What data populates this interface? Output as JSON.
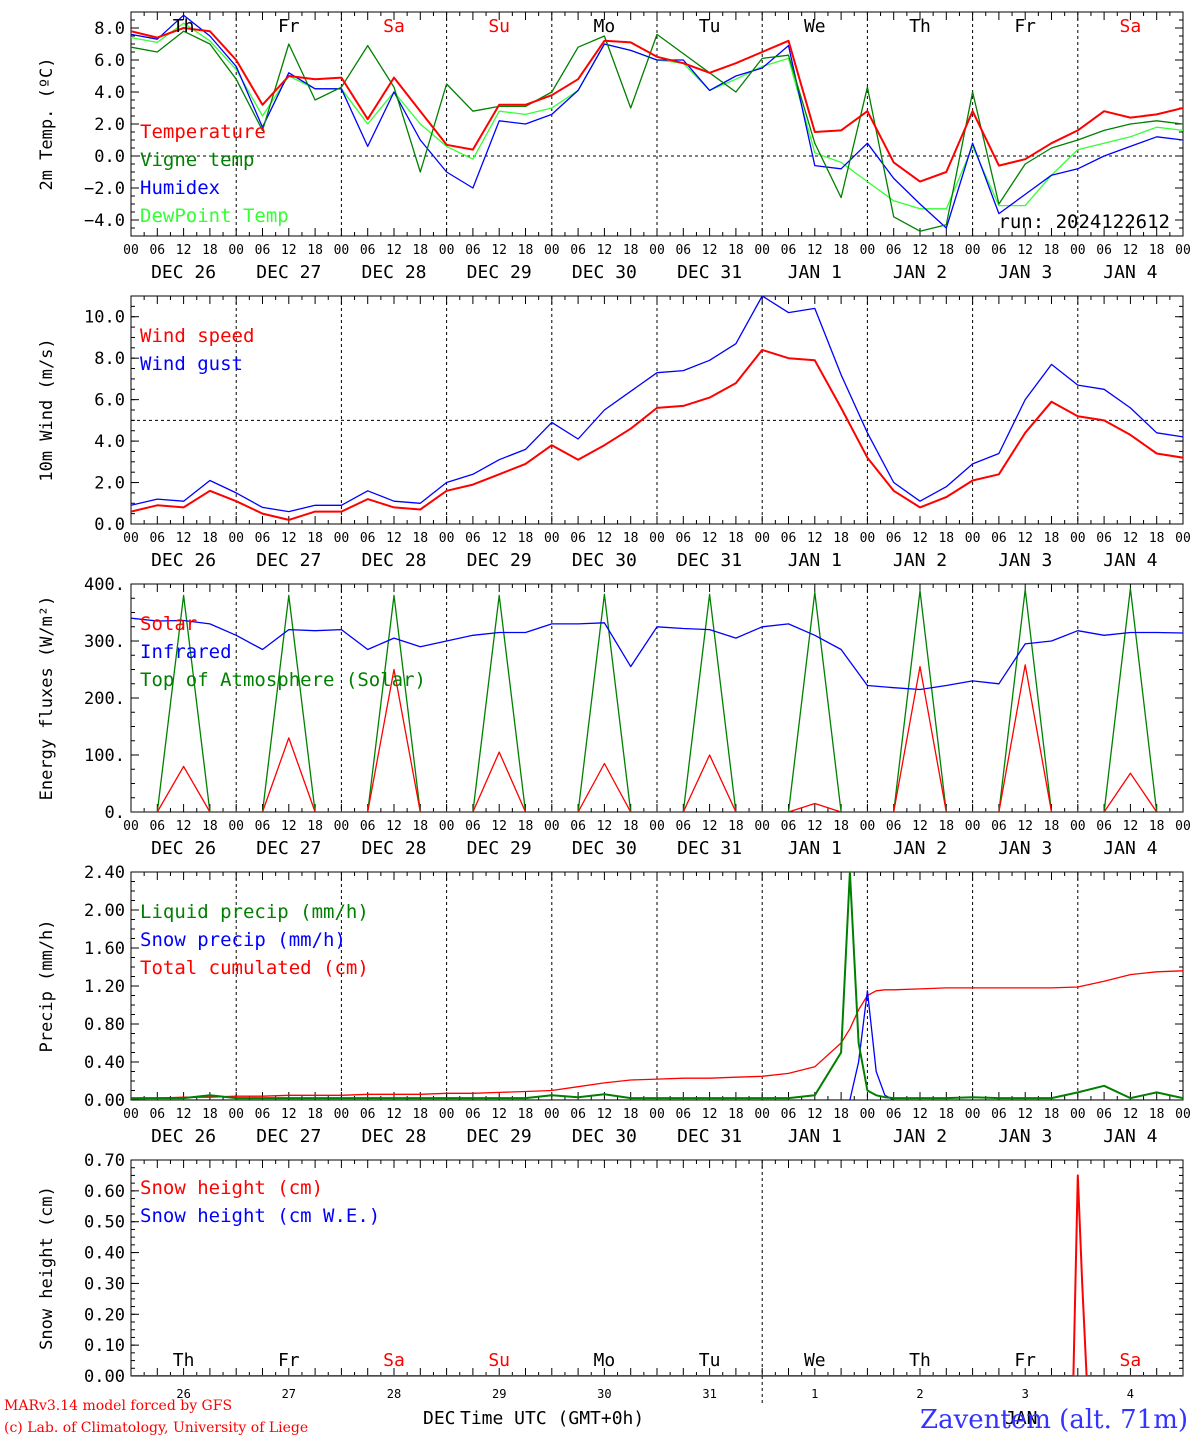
{
  "run_label": "run: 2024122612",
  "footer": {
    "model": "MARv3.14 model forced by GFS",
    "credit": "(c) Lab. of Climatology, University of Liege",
    "xlabel": "Time UTC (GMT+0h)",
    "month_left": "DEC",
    "month_right": "JAN",
    "station": "Zaventem (alt. 71m)"
  },
  "colors": {
    "red": "#ff0000",
    "green": "#008000",
    "blue": "#0000ff",
    "lightgreen": "#33ff33",
    "axis": "#000000"
  },
  "hour_ticks": [
    "00",
    "06",
    "12",
    "18"
  ],
  "day_labels": [
    "DEC 26",
    "DEC 27",
    "DEC 28",
    "DEC 29",
    "DEC 30",
    "DEC 31",
    "JAN  1",
    "JAN  2",
    "JAN  3",
    "JAN  4"
  ],
  "weekdays": [
    {
      "label": "Th",
      "color": "#000000"
    },
    {
      "label": "Fr",
      "color": "#000000"
    },
    {
      "label": "Sa",
      "color": "#ff0000"
    },
    {
      "label": "Su",
      "color": "#ff0000"
    },
    {
      "label": "Mo",
      "color": "#000000"
    },
    {
      "label": "Tu",
      "color": "#000000"
    },
    {
      "label": "We",
      "color": "#000000"
    },
    {
      "label": "Th",
      "color": "#000000"
    },
    {
      "label": "Fr",
      "color": "#000000"
    },
    {
      "label": "Sa",
      "color": "#ff0000"
    }
  ],
  "day_numbers": [
    "26",
    "27",
    "28",
    "29",
    "30",
    "31",
    "1",
    "2",
    "3",
    "4"
  ],
  "chart_data": [
    {
      "type": "line",
      "ylabel": "2m Temp. (ºC)",
      "ylim": [
        -5,
        9
      ],
      "yticks": [
        "8.0",
        "6.0",
        "4.0",
        "2.0",
        "0.0",
        "−2.0",
        "−4.0"
      ],
      "ytick_values": [
        8,
        6,
        4,
        2,
        0,
        -2,
        -4
      ],
      "reference_line": 0,
      "x_hours": [
        0,
        6,
        12,
        18,
        24,
        30,
        36,
        42,
        48,
        54,
        60,
        66,
        72,
        78,
        84,
        90,
        96,
        102,
        108,
        114,
        120,
        126,
        132,
        138,
        144,
        150,
        156,
        162,
        168,
        174,
        180,
        186,
        192,
        198,
        204,
        210,
        216,
        222,
        228,
        234,
        240
      ],
      "series": [
        {
          "name": "Temperature",
          "color": "#ff0000",
          "values": [
            7.8,
            7.4,
            8.0,
            7.8,
            6.0,
            3.2,
            5.0,
            4.8,
            4.9,
            2.3,
            4.9,
            2.8,
            0.7,
            0.4,
            3.2,
            3.2,
            3.8,
            4.8,
            7.2,
            7.1,
            6.2,
            5.8,
            5.2,
            5.8,
            6.5,
            7.2,
            1.5,
            1.6,
            2.8,
            -0.4,
            -1.6,
            -1.0,
            2.8,
            -0.6,
            -0.2,
            0.8,
            1.6,
            2.8,
            2.4,
            2.6,
            3.0
          ]
        },
        {
          "name": "Vigne temp",
          "color": "#008000",
          "values": [
            6.8,
            6.5,
            7.8,
            7.0,
            4.8,
            1.6,
            7.0,
            3.5,
            4.3,
            6.9,
            4.3,
            -1.0,
            4.5,
            2.8,
            3.1,
            3.1,
            4.0,
            6.8,
            7.5,
            3.0,
            7.6,
            6.4,
            5.2,
            4.0,
            6.1,
            6.3,
            0.8,
            -2.6,
            4.3,
            -3.8,
            -4.7,
            -4.3,
            4.0,
            -3.0,
            -0.5,
            0.5,
            1.0,
            1.6,
            2.0,
            2.2,
            2.0
          ]
        },
        {
          "name": "Humidex",
          "color": "#0000ff",
          "values": [
            7.6,
            7.3,
            8.8,
            7.5,
            5.6,
            1.8,
            5.2,
            4.2,
            4.2,
            0.6,
            4.0,
            1.0,
            -1.0,
            -2.0,
            2.2,
            2.0,
            2.6,
            4.1,
            7.0,
            6.6,
            6.0,
            6.0,
            4.1,
            5.0,
            5.5,
            6.9,
            -0.6,
            -0.8,
            0.8,
            -1.4,
            -3.0,
            -4.5,
            0.8,
            -3.6,
            -2.4,
            -1.2,
            -0.8,
            0.0,
            0.6,
            1.2,
            1.0
          ]
        },
        {
          "name": "DewPoint Temp",
          "color": "#33ff33",
          "values": [
            7.4,
            7.1,
            8.3,
            7.2,
            5.4,
            2.5,
            5.0,
            4.2,
            4.2,
            2.0,
            4.0,
            2.0,
            0.6,
            -0.2,
            2.8,
            2.6,
            3.0,
            4.1,
            7.0,
            6.6,
            6.0,
            5.8,
            4.1,
            4.8,
            5.6,
            6.1,
            0.2,
            -0.4,
            -1.6,
            -2.8,
            -3.3,
            -3.3,
            0.6,
            -3.1,
            -3.1,
            -1.2,
            0.4,
            0.8,
            1.2,
            1.8,
            1.6
          ]
        }
      ]
    },
    {
      "type": "line",
      "ylabel": "10m Wind (m/s)",
      "ylim": [
        0,
        11
      ],
      "yticks": [
        "10.0",
        "8.0",
        "6.0",
        "4.0",
        "2.0",
        "0.0"
      ],
      "ytick_values": [
        10,
        8,
        6,
        4,
        2,
        0
      ],
      "reference_line": 5,
      "x_hours": [
        0,
        6,
        12,
        18,
        24,
        30,
        36,
        42,
        48,
        54,
        60,
        66,
        72,
        78,
        84,
        90,
        96,
        102,
        108,
        114,
        120,
        126,
        132,
        138,
        144,
        150,
        156,
        162,
        168,
        174,
        180,
        186,
        192,
        198,
        204,
        210,
        216,
        222,
        228,
        234,
        240
      ],
      "series": [
        {
          "name": "Wind speed",
          "color": "#ff0000",
          "values": [
            0.6,
            0.9,
            0.8,
            1.6,
            1.1,
            0.5,
            0.2,
            0.6,
            0.6,
            1.2,
            0.8,
            0.7,
            1.6,
            1.9,
            2.4,
            2.9,
            3.8,
            3.1,
            3.8,
            4.6,
            5.6,
            5.7,
            6.1,
            6.8,
            8.4,
            8.0,
            7.9,
            5.6,
            3.2,
            1.6,
            0.8,
            1.3,
            2.1,
            2.4,
            4.4,
            5.9,
            5.2,
            5.0,
            4.3,
            3.4,
            3.2
          ]
        },
        {
          "name": "Wind gust",
          "color": "#0000ff",
          "values": [
            0.9,
            1.2,
            1.1,
            2.1,
            1.5,
            0.8,
            0.6,
            0.9,
            0.9,
            1.6,
            1.1,
            1.0,
            2.0,
            2.4,
            3.1,
            3.6,
            4.9,
            4.1,
            5.5,
            6.4,
            7.3,
            7.4,
            7.9,
            8.7,
            11.0,
            10.2,
            10.4,
            7.2,
            4.4,
            2.0,
            1.1,
            1.8,
            2.9,
            3.4,
            6.0,
            7.7,
            6.7,
            6.5,
            5.6,
            4.4,
            4.2
          ]
        }
      ]
    },
    {
      "type": "line",
      "ylabel": "Energy fluxes (W/m²)",
      "ylim": [
        0,
        400
      ],
      "yticks": [
        "400.",
        "300.",
        "200.",
        "100.",
        "0."
      ],
      "ytick_values": [
        400,
        300,
        200,
        100,
        0
      ],
      "reference_line": null,
      "x_hours": [
        0,
        6,
        12,
        18,
        24,
        30,
        36,
        42,
        48,
        54,
        60,
        66,
        72,
        78,
        84,
        90,
        96,
        102,
        108,
        114,
        120,
        126,
        132,
        138,
        144,
        150,
        156,
        162,
        168,
        174,
        180,
        186,
        192,
        198,
        204,
        210,
        216,
        222,
        228,
        234,
        240
      ],
      "series": [
        {
          "name": "Solar",
          "color": "#ff0000",
          "values": [
            0,
            0,
            80,
            0,
            0,
            0,
            130,
            0,
            0,
            0,
            250,
            0,
            0,
            0,
            105,
            0,
            0,
            0,
            85,
            0,
            0,
            0,
            100,
            0,
            0,
            0,
            15,
            0,
            0,
            0,
            255,
            0,
            0,
            0,
            258,
            0,
            0,
            0,
            68,
            0,
            0
          ]
        },
        {
          "name": "Infrared",
          "color": "#0000ff",
          "values": [
            340,
            335,
            336,
            330,
            310,
            285,
            320,
            318,
            320,
            285,
            305,
            290,
            300,
            310,
            315,
            315,
            330,
            330,
            332,
            255,
            325,
            322,
            320,
            305,
            325,
            330,
            310,
            285,
            222,
            218,
            215,
            222,
            230,
            225,
            295,
            300,
            318,
            310,
            315,
            315,
            314
          ]
        },
        {
          "name": "Top of Atmosphere (Solar)",
          "color": "#008000",
          "values": [
            0,
            0,
            380,
            0,
            0,
            0,
            380,
            0,
            0,
            0,
            380,
            0,
            0,
            0,
            380,
            0,
            0,
            0,
            382,
            0,
            0,
            0,
            382,
            0,
            0,
            0,
            385,
            0,
            0,
            0,
            388,
            0,
            0,
            0,
            390,
            0,
            0,
            0,
            392,
            0,
            0
          ]
        }
      ]
    },
    {
      "type": "line",
      "ylabel": "Precip (mm/h)",
      "ylim": [
        0,
        2.4
      ],
      "yticks": [
        "2.40",
        "2.00",
        "1.60",
        "1.20",
        "0.80",
        "0.40",
        "0.00"
      ],
      "ytick_values": [
        2.4,
        2.0,
        1.6,
        1.2,
        0.8,
        0.4,
        0.0
      ],
      "reference_line": null,
      "x_hours": [
        0,
        6,
        12,
        18,
        24,
        30,
        36,
        42,
        48,
        54,
        60,
        66,
        72,
        78,
        84,
        90,
        96,
        102,
        108,
        114,
        120,
        126,
        132,
        138,
        144,
        150,
        156,
        162,
        164,
        166,
        168,
        170,
        172,
        174,
        180,
        186,
        192,
        198,
        204,
        210,
        216,
        222,
        228,
        234,
        240
      ],
      "series": [
        {
          "name": "Liquid precip (mm/h)",
          "color": "#008000",
          "values": [
            0.02,
            0.02,
            0.02,
            0.05,
            0.02,
            0.02,
            0.02,
            0.02,
            0.02,
            0.02,
            0.02,
            0.02,
            0.02,
            0.02,
            0.02,
            0.02,
            0.05,
            0.03,
            0.06,
            0.02,
            0.02,
            0.02,
            0.02,
            0.02,
            0.02,
            0.02,
            0.05,
            0.5,
            2.4,
            0.6,
            0.1,
            0.05,
            0.03,
            0.02,
            0.02,
            0.02,
            0.03,
            0.02,
            0.02,
            0.02,
            0.08,
            0.15,
            0.02,
            0.08,
            0.02
          ]
        },
        {
          "name": "Snow precip (mm/h)",
          "color": "#0000ff",
          "values": [
            0,
            0,
            0,
            0,
            0,
            0,
            0,
            0,
            0,
            0,
            0,
            0,
            0,
            0,
            0,
            0,
            0,
            0,
            0,
            0,
            0,
            0,
            0,
            0,
            0,
            0,
            0,
            0,
            0,
            0.4,
            1.15,
            0.3,
            0.05,
            0,
            0,
            0,
            0,
            0,
            0,
            0,
            0,
            0,
            0,
            0,
            0
          ]
        },
        {
          "name": "Total cumulated (cm)",
          "color": "#ff0000",
          "values": [
            0.01,
            0.02,
            0.03,
            0.03,
            0.04,
            0.04,
            0.05,
            0.05,
            0.05,
            0.06,
            0.06,
            0.06,
            0.07,
            0.07,
            0.08,
            0.09,
            0.1,
            0.14,
            0.18,
            0.21,
            0.22,
            0.23,
            0.23,
            0.24,
            0.25,
            0.28,
            0.35,
            0.6,
            0.75,
            0.95,
            1.1,
            1.15,
            1.16,
            1.16,
            1.17,
            1.18,
            1.18,
            1.18,
            1.18,
            1.18,
            1.19,
            1.25,
            1.32,
            1.35,
            1.36
          ]
        }
      ]
    },
    {
      "type": "line",
      "ylabel": "Snow height (cm)",
      "ylim": [
        0,
        0.7
      ],
      "yticks": [
        "0.70",
        "0.60",
        "0.50",
        "0.40",
        "0.30",
        "0.20",
        "0.10",
        "0.00"
      ],
      "ytick_values": [
        0.7,
        0.6,
        0.5,
        0.4,
        0.3,
        0.2,
        0.1,
        0.0
      ],
      "reference_line": null,
      "x_hours": [
        0,
        24,
        48,
        72,
        96,
        120,
        144,
        168,
        192,
        215,
        216,
        217,
        218,
        240
      ],
      "series": [
        {
          "name": "Snow height (cm)",
          "color": "#ff0000",
          "values": [
            0,
            0,
            0,
            0,
            0,
            0,
            0,
            0,
            0,
            0,
            0.65,
            0.3,
            0,
            0
          ]
        },
        {
          "name": "Snow height (cm W.E.)",
          "color": "#0000ff",
          "values": [
            0,
            0,
            0,
            0,
            0,
            0,
            0,
            0,
            0,
            0,
            0,
            0,
            0,
            0
          ]
        }
      ]
    }
  ]
}
